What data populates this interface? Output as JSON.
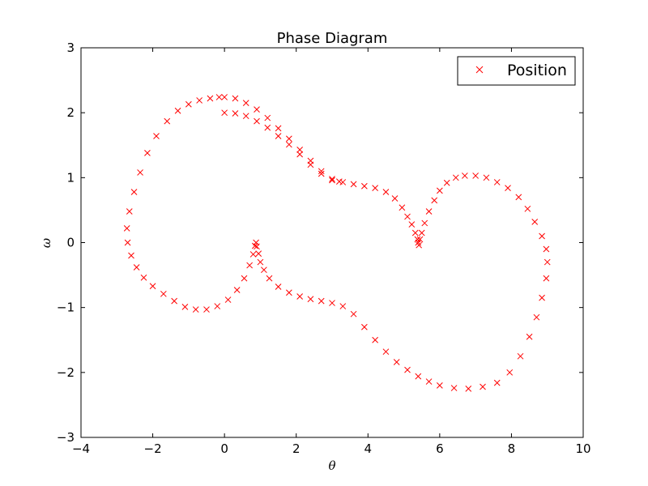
{
  "chart_data": {
    "type": "scatter",
    "title": "Phase Diagram",
    "xlabel": "θ",
    "ylabel": "ω",
    "xlim": [
      -4,
      10
    ],
    "ylim": [
      -3,
      3
    ],
    "xticks": [
      -4,
      -2,
      0,
      2,
      4,
      6,
      8,
      10
    ],
    "yticks": [
      -3,
      -2,
      -1,
      0,
      1,
      2,
      3
    ],
    "grid": false,
    "legend_position": "top-right",
    "marker": "x",
    "color": "#ff0000",
    "series": [
      {
        "name": "Position",
        "points": [
          [
            0.0,
            2.0
          ],
          [
            0.3,
            1.99
          ],
          [
            0.6,
            1.95
          ],
          [
            0.9,
            1.87
          ],
          [
            1.2,
            1.77
          ],
          [
            1.5,
            1.64
          ],
          [
            1.8,
            1.51
          ],
          [
            2.1,
            1.36
          ],
          [
            2.4,
            1.2
          ],
          [
            2.7,
            1.06
          ],
          [
            3.0,
            0.96
          ],
          [
            3.2,
            0.94
          ],
          [
            0.0,
            2.24
          ],
          [
            0.3,
            2.22
          ],
          [
            0.6,
            2.15
          ],
          [
            0.9,
            2.05
          ],
          [
            1.2,
            1.92
          ],
          [
            1.5,
            1.76
          ],
          [
            1.8,
            1.6
          ],
          [
            2.1,
            1.43
          ],
          [
            2.4,
            1.26
          ],
          [
            2.7,
            1.1
          ],
          [
            3.0,
            0.98
          ],
          [
            3.3,
            0.93
          ],
          [
            3.6,
            0.9
          ],
          [
            3.9,
            0.87
          ],
          [
            4.2,
            0.84
          ],
          [
            4.5,
            0.78
          ],
          [
            4.75,
            0.68
          ],
          [
            4.95,
            0.54
          ],
          [
            5.1,
            0.4
          ],
          [
            5.22,
            0.28
          ],
          [
            5.32,
            0.15
          ],
          [
            5.38,
            0.05
          ],
          [
            5.4,
            0.0
          ],
          [
            5.42,
            -0.04
          ],
          [
            5.45,
            0.05
          ],
          [
            5.5,
            0.15
          ],
          [
            5.58,
            0.3
          ],
          [
            5.7,
            0.48
          ],
          [
            5.85,
            0.65
          ],
          [
            6.0,
            0.8
          ],
          [
            6.2,
            0.92
          ],
          [
            6.45,
            1.0
          ],
          [
            6.7,
            1.03
          ],
          [
            7.0,
            1.03
          ],
          [
            7.3,
            1.0
          ],
          [
            7.6,
            0.93
          ],
          [
            7.9,
            0.84
          ],
          [
            8.2,
            0.7
          ],
          [
            8.45,
            0.52
          ],
          [
            8.65,
            0.32
          ],
          [
            8.85,
            0.1
          ],
          [
            8.97,
            -0.1
          ],
          [
            9.0,
            -0.3
          ],
          [
            8.97,
            -0.55
          ],
          [
            8.85,
            -0.85
          ],
          [
            8.7,
            -1.15
          ],
          [
            8.5,
            -1.45
          ],
          [
            8.25,
            -1.75
          ],
          [
            7.95,
            -2.0
          ],
          [
            7.6,
            -2.16
          ],
          [
            7.2,
            -2.22
          ],
          [
            6.8,
            -2.25
          ],
          [
            6.4,
            -2.24
          ],
          [
            6.0,
            -2.2
          ],
          [
            5.7,
            -2.14
          ],
          [
            5.4,
            -2.06
          ],
          [
            5.1,
            -1.96
          ],
          [
            4.8,
            -1.84
          ],
          [
            4.5,
            -1.68
          ],
          [
            4.2,
            -1.5
          ],
          [
            3.9,
            -1.3
          ],
          [
            3.6,
            -1.1
          ],
          [
            3.3,
            -0.98
          ],
          [
            3.0,
            -0.93
          ],
          [
            2.7,
            -0.9
          ],
          [
            2.4,
            -0.87
          ],
          [
            2.1,
            -0.83
          ],
          [
            1.8,
            -0.77
          ],
          [
            1.5,
            -0.68
          ],
          [
            1.25,
            -0.55
          ],
          [
            1.1,
            -0.42
          ],
          [
            1.0,
            -0.3
          ],
          [
            0.95,
            -0.17
          ],
          [
            0.9,
            -0.06
          ],
          [
            0.88,
            0.0
          ],
          [
            0.85,
            -0.05
          ],
          [
            0.8,
            -0.18
          ],
          [
            0.7,
            -0.35
          ],
          [
            0.55,
            -0.55
          ],
          [
            0.35,
            -0.73
          ],
          [
            0.1,
            -0.88
          ],
          [
            -0.2,
            -0.98
          ],
          [
            -0.5,
            -1.03
          ],
          [
            -0.8,
            -1.03
          ],
          [
            -1.1,
            -0.99
          ],
          [
            -1.4,
            -0.9
          ],
          [
            -1.7,
            -0.79
          ],
          [
            -2.0,
            -0.67
          ],
          [
            -2.25,
            -0.54
          ],
          [
            -2.45,
            -0.38
          ],
          [
            -2.6,
            -0.2
          ],
          [
            -2.7,
            0.0
          ],
          [
            -2.72,
            0.22
          ],
          [
            -2.65,
            0.48
          ],
          [
            -2.52,
            0.78
          ],
          [
            -2.35,
            1.08
          ],
          [
            -2.15,
            1.38
          ],
          [
            -1.9,
            1.64
          ],
          [
            -1.6,
            1.87
          ],
          [
            -1.3,
            2.03
          ],
          [
            -1.0,
            2.13
          ],
          [
            -0.7,
            2.19
          ],
          [
            -0.4,
            2.22
          ],
          [
            -0.15,
            2.24
          ]
        ]
      }
    ]
  }
}
